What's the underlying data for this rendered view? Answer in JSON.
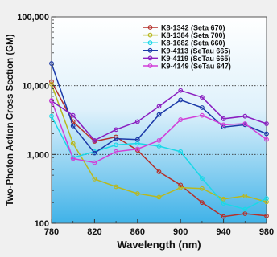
{
  "chart_data": {
    "type": "line",
    "xlabel": "Wavelength (nm)",
    "ylabel": "Two-Photon Action Cross Section (GM)",
    "xlim": [
      780,
      980
    ],
    "ylim": [
      100,
      100000
    ],
    "yscale": "log",
    "x_ticks": [
      780,
      820,
      860,
      900,
      940,
      980
    ],
    "y_ticks": [
      {
        "value": 100,
        "label": "100"
      },
      {
        "value": 1000,
        "label": "1,000"
      },
      {
        "value": 10000,
        "label": "10,000"
      },
      {
        "value": 100000,
        "label": "100,000"
      }
    ],
    "grid": "dotted lines at 1,000 and 10,000",
    "background": "blue vertical gradient, darker toward bottom",
    "legend_position": "top-right",
    "x": [
      780,
      800,
      820,
      840,
      860,
      880,
      900,
      920,
      940,
      960,
      980
    ],
    "series": [
      {
        "name": "K8-1342 (Seta 670)",
        "color": "#b5302a",
        "values": [
          11500,
          3000,
          1550,
          1800,
          1150,
          560,
          360,
          200,
          125,
          138,
          128
        ]
      },
      {
        "name": "K8-1384 (Seta 700)",
        "color": "#b8b820",
        "values": [
          10500,
          1450,
          440,
          340,
          270,
          240,
          330,
          320,
          225,
          250,
          205
        ]
      },
      {
        "name": "K8-1682 (Seta 660)",
        "color": "#1ad8e8",
        "values": [
          3600,
          900,
          1100,
          1380,
          1450,
          1320,
          1100,
          450,
          195,
          160,
          230
        ]
      },
      {
        "name": "K9-4113 (SeTau 665)",
        "color": "#1c3aa8",
        "values": [
          21000,
          2600,
          1050,
          1700,
          1650,
          3800,
          6200,
          4800,
          2500,
          2700,
          2000
        ]
      },
      {
        "name": "K9-4119 (SeTau 665)",
        "color": "#8a1ec0",
        "values": [
          6000,
          3700,
          1600,
          2300,
          3000,
          5000,
          8500,
          6800,
          3300,
          3600,
          2800
        ]
      },
      {
        "name": "K9-4149 (SeTau 647)",
        "color": "#d23ed8",
        "values": [
          6100,
          870,
          760,
          1100,
          1200,
          1600,
          3200,
          3700,
          2700,
          2800,
          1650
        ]
      }
    ]
  }
}
